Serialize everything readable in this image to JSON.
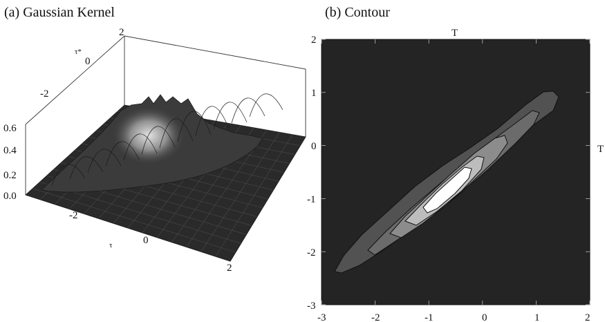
{
  "chart_data": [
    {
      "type": "surface3d",
      "title": "(a) Gaussian Kernel",
      "x_axis": {
        "label": "τ",
        "ticks": [
          "-2",
          "0",
          "2"
        ]
      },
      "y_axis": {
        "label": "τ*",
        "ticks": [
          "-2",
          "0",
          "2"
        ]
      },
      "z_axis": {
        "ticks": [
          "0.0",
          "0.2",
          "0.4",
          "0.6"
        ],
        "range": [
          0,
          0.6
        ]
      },
      "peak_value": 0.5,
      "ridge": "along τ = τ*"
    },
    {
      "type": "contour",
      "title": "(b) Contour",
      "x_ticks": [
        "-3",
        "-2",
        "-1",
        "0",
        "1",
        "2"
      ],
      "y_ticks": [
        "-3",
        "-2",
        "-1",
        "0",
        "1",
        "2"
      ],
      "xlim": [
        -3,
        2
      ],
      "ylim": [
        -3,
        2
      ],
      "top_label": "T",
      "right_label": "T",
      "levels": 5,
      "ridge": "along y = x",
      "colors": {
        "background": "#242424",
        "peak": "#ffffff"
      }
    }
  ]
}
